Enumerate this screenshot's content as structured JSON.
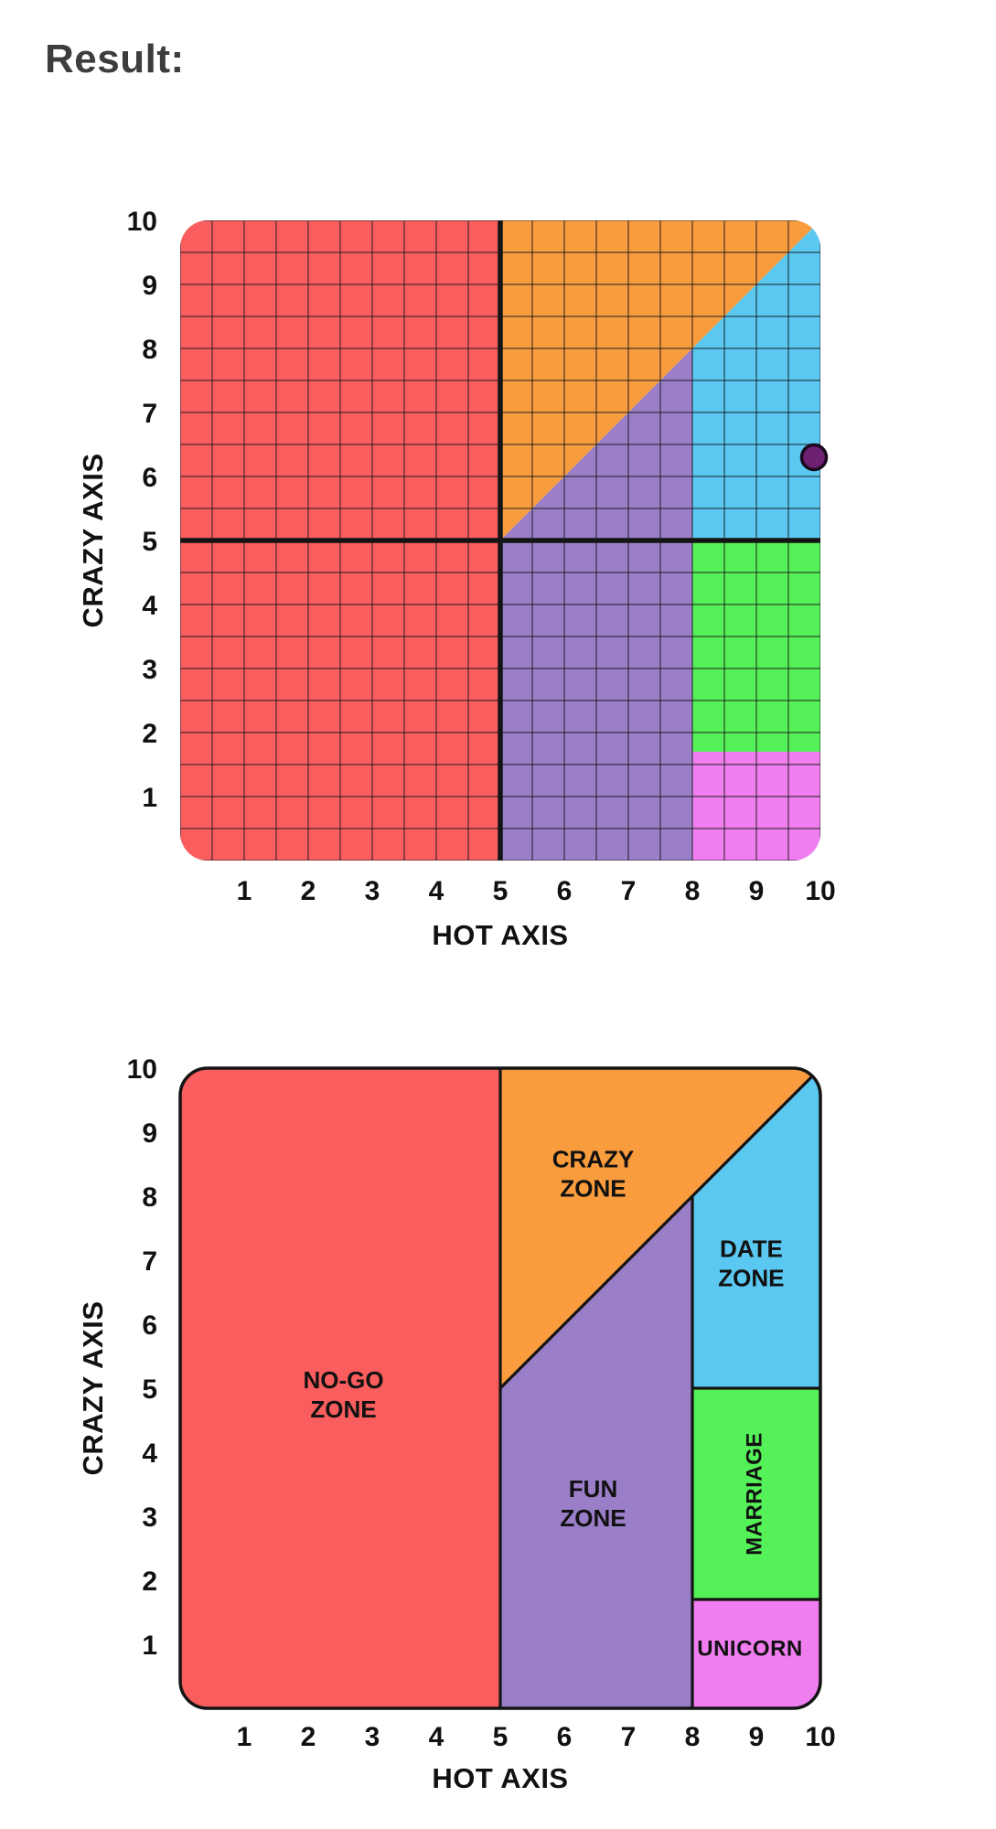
{
  "page": {
    "heading": "Result:"
  },
  "chart_data": {
    "axes": {
      "xlabel": "HOT AXIS",
      "ylabel": "CRAZY AXIS",
      "xlim": [
        0,
        10
      ],
      "ylim": [
        0,
        10
      ],
      "x_ticks": [
        1,
        2,
        3,
        4,
        5,
        6,
        7,
        8,
        9,
        10
      ],
      "y_ticks": [
        1,
        2,
        3,
        4,
        5,
        6,
        7,
        8,
        9,
        10
      ],
      "grid_step": 0.5,
      "grid_color": "rgba(25,25,25,0.55)",
      "line_color": "#141414",
      "tick_color": "#111111"
    },
    "zones": [
      {
        "id": "no-go",
        "label_lines": [
          "NO-GO",
          "ZONE"
        ],
        "color": "#FA5D5D",
        "polygon": [
          [
            0,
            0
          ],
          [
            0,
            10
          ],
          [
            5,
            10
          ],
          [
            5,
            0
          ]
        ],
        "label_pos": [
          2.55,
          4.9
        ],
        "label_size": "normal"
      },
      {
        "id": "crazy",
        "label_lines": [
          "CRAZY",
          "ZONE"
        ],
        "color": "#F99C3D",
        "polygon": [
          [
            5,
            5
          ],
          [
            5,
            10
          ],
          [
            10,
            10
          ]
        ],
        "label_pos": [
          6.45,
          8.35
        ],
        "label_size": "normal"
      },
      {
        "id": "date",
        "label_lines": [
          "DATE",
          "ZONE"
        ],
        "color": "#5AC8F1",
        "polygon": [
          [
            8,
            5
          ],
          [
            8,
            8
          ],
          [
            10,
            10
          ],
          [
            10,
            5
          ]
        ],
        "label_pos": [
          8.92,
          6.95
        ],
        "label_size": "normal"
      },
      {
        "id": "fun",
        "label_lines": [
          "FUN",
          "ZONE"
        ],
        "color": "#9B7EC8",
        "polygon": [
          [
            5,
            0
          ],
          [
            5,
            5
          ],
          [
            8,
            8
          ],
          [
            8,
            0
          ]
        ],
        "label_pos": [
          6.45,
          3.2
        ],
        "label_size": "normal"
      },
      {
        "id": "marriage",
        "label_lines": [
          "MARRIAGE"
        ],
        "color": "#55F159",
        "polygon": [
          [
            8,
            1.7
          ],
          [
            8,
            5
          ],
          [
            10,
            5
          ],
          [
            10,
            1.7
          ]
        ],
        "label_pos": [
          8.95,
          3.35
        ],
        "label_size": "small",
        "label_rotate": -90
      },
      {
        "id": "unicorn",
        "label_lines": [
          "UNICORN"
        ],
        "color": "#F07EF0",
        "polygon": [
          [
            8,
            0
          ],
          [
            8,
            1.7
          ],
          [
            10,
            1.7
          ],
          [
            10,
            0
          ]
        ],
        "label_pos": [
          8.9,
          0.95
        ],
        "label_size": "small"
      }
    ],
    "charts": [
      {
        "id": "matrix-grid",
        "type": "scatter",
        "grid": true,
        "show_zone_labels": false,
        "outline": false,
        "crosshair": {
          "x": 5,
          "y": 5
        },
        "points": [
          {
            "x": 9.9,
            "y": 6.3,
            "color": "#6E2173",
            "outline": "#1B0A1E"
          }
        ]
      },
      {
        "id": "matrix-zones",
        "type": "area",
        "grid": false,
        "show_zone_labels": true,
        "outline": true,
        "zone_borders": [
          [
            5,
            0,
            5,
            10
          ],
          [
            5,
            5,
            10,
            10
          ],
          [
            8,
            0,
            8,
            8
          ],
          [
            8,
            5,
            10,
            5
          ],
          [
            8,
            1.7,
            10,
            1.7
          ]
        ],
        "points": []
      }
    ]
  }
}
